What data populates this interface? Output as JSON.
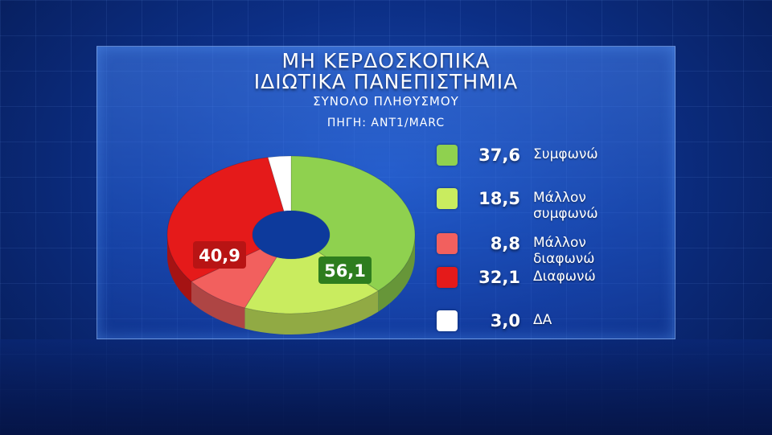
{
  "title_line1": "ΜΗ ΚΕΡΔΟΣΚΟΠΙΚΑ",
  "title_line2": "ΙΔΙΩΤΙΚΑ ΠΑΝΕΠΙΣΤΗΜΙΑ",
  "subtitle": "ΣΥΝΟΛΟ ΠΛΗΘΥΣΜΟΥ",
  "source": "ΠΗΓΗ: ΑΝΤ1/MARC",
  "chart_data": {
    "type": "pie",
    "donut": true,
    "slices": [
      {
        "label": "Συμφωνώ",
        "value": 37.6,
        "color": "#8fd14f"
      },
      {
        "label": "Μάλλον συμφωνώ",
        "value": 18.5,
        "color": "#c9ec5f"
      },
      {
        "label": "Μάλλον διαφωνώ",
        "value": 8.8,
        "color": "#f2605e"
      },
      {
        "label": "Διαφωνώ",
        "value": 32.1,
        "color": "#e51a1a"
      },
      {
        "label": "ΔΑ",
        "value": 3.0,
        "color": "#ffffff"
      }
    ],
    "group_labels": [
      {
        "text": "56,1",
        "value": 56.1,
        "color": "#2e7d1e"
      },
      {
        "text": "40,9",
        "value": 40.9,
        "color": "#b81414"
      }
    ],
    "legend": [
      {
        "value_text": "37,6",
        "label": "Συμφωνώ",
        "color": "#8fd14f"
      },
      {
        "value_text": "18,5",
        "label": "Μάλλον\nσυμφωνώ",
        "color": "#c9ec5f"
      },
      {
        "value_text": "8,8",
        "label": "Μάλλον\nδιαφωνώ",
        "color": "#f2605e"
      },
      {
        "value_text": "32,1",
        "label": "Διαφωνώ",
        "color": "#e51a1a"
      },
      {
        "value_text": "3,0",
        "label": "ΔΑ",
        "color": "#ffffff"
      }
    ],
    "legend_position": "right"
  }
}
